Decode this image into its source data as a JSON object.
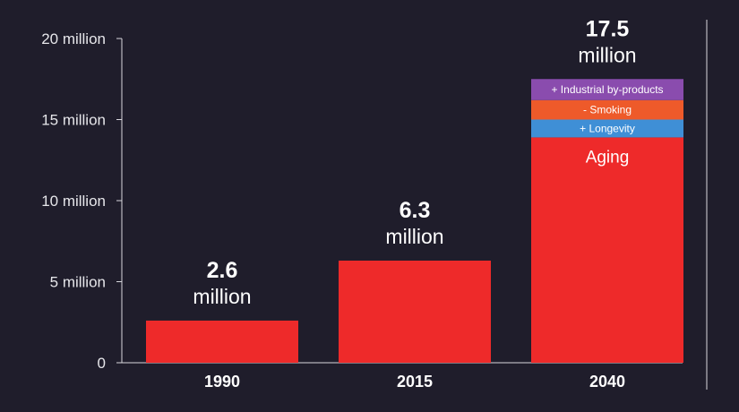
{
  "chart_data": {
    "type": "bar",
    "title": "",
    "xlabel": "",
    "ylabel": "",
    "ylim": [
      0,
      20000000
    ],
    "yticks": [
      {
        "value": 0,
        "label": "0"
      },
      {
        "value": 5000000,
        "label": "5 million"
      },
      {
        "value": 10000000,
        "label": "10 million"
      },
      {
        "value": 15000000,
        "label": "15 million"
      },
      {
        "value": 20000000,
        "label": "20 million"
      }
    ],
    "categories": [
      "1990",
      "2015",
      "2040"
    ],
    "values": [
      2600000,
      6300000,
      17500000
    ],
    "value_labels": [
      {
        "number": "2.6",
        "unit": "million"
      },
      {
        "number": "6.3",
        "unit": "million"
      },
      {
        "number": "17.5",
        "unit": "million"
      }
    ],
    "stack_2040": [
      {
        "label": "Aging",
        "value": 13900000,
        "color": "#ee2a2a"
      },
      {
        "label": "+ Longevity",
        "value": 1100000,
        "color": "#3f8fd6"
      },
      {
        "label": "- Smoking",
        "value": 1200000,
        "color": "#ee5a2a"
      },
      {
        "label": "+ Industrial by-products",
        "value": 1300000,
        "color": "#8a4cae"
      }
    ],
    "bar_color": "#ee2a2a",
    "grid": false
  }
}
